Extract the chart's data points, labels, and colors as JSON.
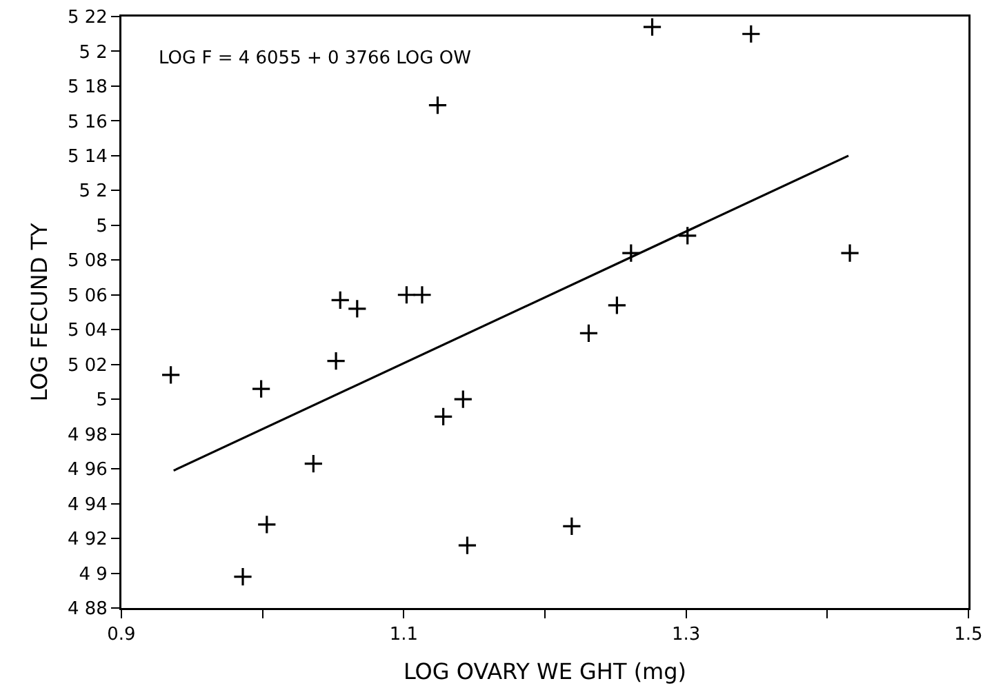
{
  "chart_data": {
    "type": "scatter",
    "xlabel": "LOG OVARY WE GHT (mg)",
    "ylabel": "LOG FECUND TY",
    "annotations": [
      "LOG F = 4 6055 + 0 3766 LOG OW"
    ],
    "xlim": [
      0.9,
      1.5
    ],
    "xticks": [
      0.9,
      {
        "value": 1.0,
        "label": null
      },
      1.1,
      {
        "value": 1.2,
        "label": null
      },
      1.3,
      {
        "value": 1.4,
        "label": null
      },
      1.5
    ],
    "ylim": [
      4.88,
      5.22
    ],
    "yticks": [
      {
        "value": 4.88,
        "label": "4 88"
      },
      {
        "value": 4.9,
        "label": "4 9"
      },
      {
        "value": 4.92,
        "label": "4 92"
      },
      {
        "value": 4.94,
        "label": "4 94"
      },
      {
        "value": 4.96,
        "label": "4 96"
      },
      {
        "value": 4.98,
        "label": "4 98"
      },
      {
        "value": 5.0,
        "label": "5"
      },
      {
        "value": 5.02,
        "label": "5 02"
      },
      {
        "value": 5.04,
        "label": "5 04"
      },
      {
        "value": 5.06,
        "label": "5 06"
      },
      {
        "value": 5.08,
        "label": "5 08"
      },
      {
        "value": 5.1,
        "label": "5"
      },
      {
        "value": 5.12,
        "label": "5 2"
      },
      {
        "value": 5.14,
        "label": "5 14"
      },
      {
        "value": 5.16,
        "label": "5 16"
      },
      {
        "value": 5.18,
        "label": "5 18"
      },
      {
        "value": 5.2,
        "label": "5 2"
      },
      {
        "value": 5.22,
        "label": "5 22"
      }
    ],
    "grid": false,
    "marker": "cross",
    "series": [
      {
        "color": "#000000",
        "x": [
          0.935,
          0.999,
          1.052,
          1.124,
          1.055,
          1.067,
          1.102,
          1.113,
          1.036,
          1.003,
          0.986,
          1.128,
          1.142,
          1.145,
          1.219,
          1.231,
          1.251,
          1.261,
          1.301,
          1.416,
          1.276,
          1.346
        ],
        "values": [
          5.014,
          5.006,
          5.022,
          5.169,
          5.057,
          5.052,
          5.06,
          5.06,
          4.963,
          4.928,
          4.898,
          4.99,
          5.0,
          4.916,
          4.927,
          5.038,
          5.054,
          5.084,
          5.094,
          5.084,
          5.214,
          5.21
        ]
      },
      {
        "type": "line",
        "color": "#000000",
        "marker": "none",
        "x": [
          0.937,
          1.415
        ],
        "values": [
          4.959,
          5.14
        ]
      }
    ]
  }
}
